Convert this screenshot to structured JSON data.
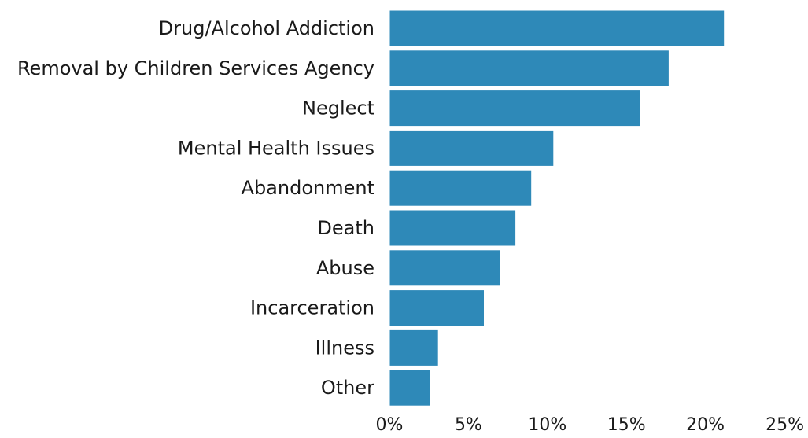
{
  "colors": {
    "bar": "#2e89b8",
    "bar_edge": "#ffffff",
    "text": "#1a1a1a",
    "background": "#ffffff"
  },
  "chart_data": {
    "type": "bar",
    "orientation": "horizontal",
    "title": "",
    "xlabel": "",
    "ylabel": "",
    "categories": [
      "Drug/Alcohol Addiction",
      "Removal by Children Services Agency",
      "Neglect",
      "Mental Health Issues",
      "Abandonment",
      "Death",
      "Abuse",
      "Incarceration",
      "Illness",
      "Other"
    ],
    "values": [
      21.2,
      17.7,
      15.9,
      10.4,
      9.0,
      8.0,
      7.0,
      6.0,
      3.1,
      2.6
    ],
    "value_unit": "%",
    "xlim": [
      0,
      25
    ],
    "xticks": [
      0,
      5,
      10,
      15,
      20,
      25
    ],
    "xtick_labels": [
      "0%",
      "5%",
      "10%",
      "15%",
      "20%",
      "25%"
    ],
    "grid": false,
    "legend": "none"
  }
}
